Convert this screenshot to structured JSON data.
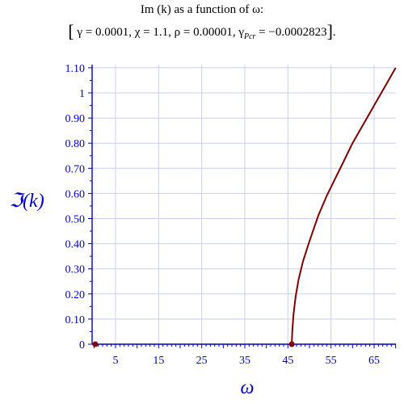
{
  "chart_data": {
    "type": "line",
    "title_line1": "Im (k) as a function of ω:",
    "params": {
      "gamma": "γ = 0.0001,",
      "chi": "χ = 1.1,",
      "rho": "ρ = 0.00001,",
      "gpcr_sym": "γ",
      "gpcr_sub": "Pcr",
      "gpcr_val": "= −0.0002823",
      "close": "]",
      "open": "[",
      "period": "."
    },
    "xlabel": "ω",
    "ylabel": "ℑ(k)",
    "xlim": [
      -2,
      70
    ],
    "ylim": [
      0,
      1.12
    ],
    "x_ticks": [
      5,
      15,
      25,
      35,
      45,
      55,
      65
    ],
    "y_ticks": [
      {
        "v": 0,
        "label": "0"
      },
      {
        "v": 0.1,
        "label": "0.10"
      },
      {
        "v": 0.2,
        "label": "0.20"
      },
      {
        "v": 0.3,
        "label": "0.30"
      },
      {
        "v": 0.4,
        "label": "0.40"
      },
      {
        "v": 0.5,
        "label": "0.50"
      },
      {
        "v": 0.6,
        "label": "0.60"
      },
      {
        "v": 0.7,
        "label": "0.70"
      },
      {
        "v": 0.8,
        "label": "0.80"
      },
      {
        "v": 0.9,
        "label": "0.90"
      },
      {
        "v": 1.0,
        "label": "1"
      },
      {
        "v": 1.1,
        "label": "1.10"
      }
    ],
    "grid": true,
    "series": [
      {
        "color": "#800000",
        "x": [
          45.9,
          46.0,
          46.3,
          46.8,
          47.5,
          48.5,
          50,
          52,
          54,
          56,
          58,
          60,
          62,
          64,
          66,
          68,
          70
        ],
        "y": [
          0.0,
          0.05,
          0.12,
          0.19,
          0.26,
          0.33,
          0.41,
          0.51,
          0.59,
          0.66,
          0.73,
          0.8,
          0.86,
          0.92,
          0.98,
          1.04,
          1.1
        ]
      }
    ],
    "points": [
      {
        "x": 0.3,
        "y": 0,
        "color": "#800000"
      },
      {
        "x": 45.9,
        "y": 0,
        "color": "#800000"
      }
    ],
    "axis_color": "#0000cc",
    "grid_color": "#c8d0f0"
  }
}
